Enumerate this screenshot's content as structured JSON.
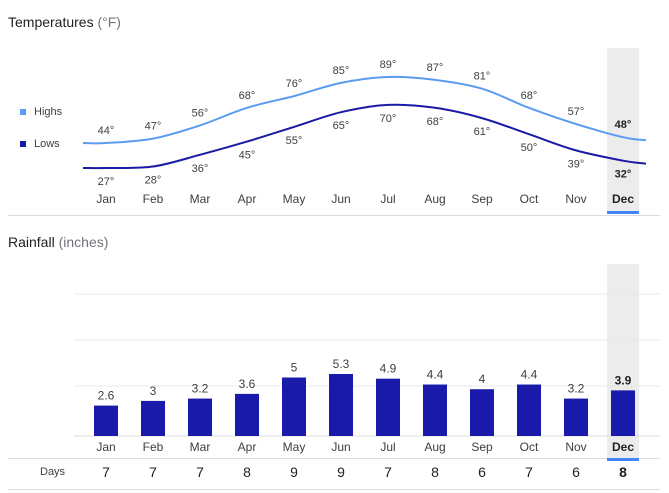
{
  "temperatures": {
    "title": "Temperatures",
    "unit": "(°F)"
  },
  "rainfall": {
    "title": "Rainfall",
    "unit": "(inches)"
  },
  "legend": {
    "highs": "Highs",
    "lows": "Lows"
  },
  "days_label": "Days",
  "selected_month": "Dec",
  "colors": {
    "highs": "#5b9bf0",
    "lows": "#1a1aa6",
    "bars": "#1a1aaa",
    "selection": "#4285f4"
  },
  "chart_data": [
    {
      "type": "line",
      "categories": [
        "Jan",
        "Feb",
        "Mar",
        "Apr",
        "May",
        "Jun",
        "Jul",
        "Aug",
        "Sep",
        "Oct",
        "Nov",
        "Dec"
      ],
      "series": [
        {
          "name": "Highs",
          "values": [
            44,
            47,
            56,
            68,
            76,
            85,
            89,
            87,
            81,
            68,
            57,
            48
          ],
          "labels": [
            "44°",
            "47°",
            "56°",
            "68°",
            "76°",
            "85°",
            "89°",
            "87°",
            "81°",
            "68°",
            "57°",
            "48°"
          ]
        },
        {
          "name": "Lows",
          "values": [
            27,
            28,
            36,
            45,
            55,
            65,
            70,
            68,
            61,
            50,
            39,
            32
          ],
          "labels": [
            "27°",
            "28°",
            "36°",
            "45°",
            "55°",
            "65°",
            "70°",
            "68°",
            "61°",
            "50°",
            "39°",
            "32°"
          ]
        }
      ]
    },
    {
      "type": "bar",
      "categories": [
        "Jan",
        "Feb",
        "Mar",
        "Apr",
        "May",
        "Jun",
        "Jul",
        "Aug",
        "Sep",
        "Oct",
        "Nov",
        "Dec"
      ],
      "values": [
        2.6,
        3,
        3.2,
        3.6,
        5,
        5.3,
        4.9,
        4.4,
        4,
        4.4,
        3.2,
        3.9
      ],
      "labels": [
        "2.6",
        "3",
        "3.2",
        "3.6",
        "5",
        "5.3",
        "4.9",
        "4.4",
        "4",
        "4.4",
        "3.2",
        "3.9"
      ],
      "days": [
        "7",
        "7",
        "7",
        "8",
        "9",
        "9",
        "7",
        "8",
        "6",
        "7",
        "6",
        "8"
      ]
    }
  ]
}
